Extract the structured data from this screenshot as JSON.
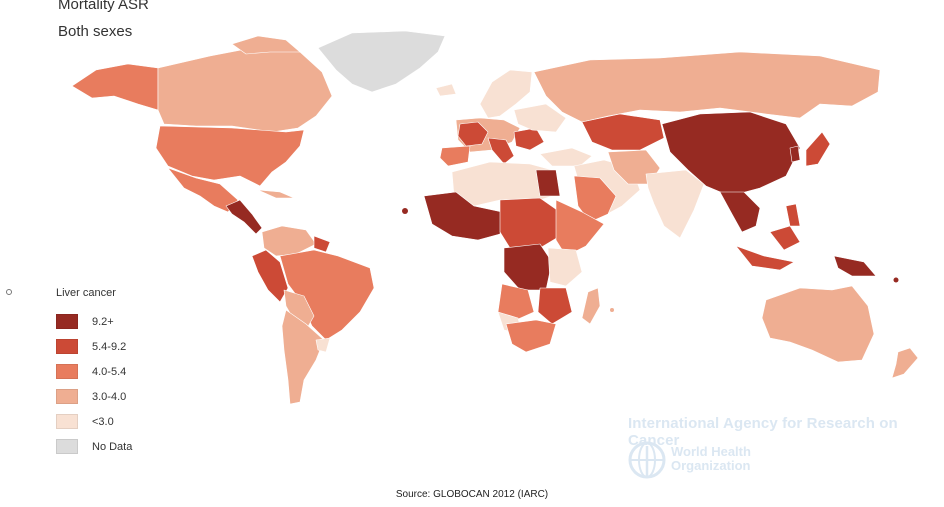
{
  "header": {
    "title": "Mortality ASR",
    "subtitle": "Both sexes"
  },
  "legend": {
    "title": "Liver cancer",
    "items": [
      {
        "label": "9.2+",
        "color": "#962a22"
      },
      {
        "label": "5.4-9.2",
        "color": "#cc4a36"
      },
      {
        "label": "4.0-5.4",
        "color": "#e87c5e"
      },
      {
        "label": "3.0-4.0",
        "color": "#efae92"
      },
      {
        "label": "<3.0",
        "color": "#f8e1d3"
      },
      {
        "label": "No Data",
        "color": "#dcdcdc"
      }
    ]
  },
  "watermark": {
    "iarc": "International Agency for Research on Cancer",
    "who_line1": "World Health",
    "who_line2": "Organization"
  },
  "source": "Source: GLOBOCAN 2012 (IARC)"
}
